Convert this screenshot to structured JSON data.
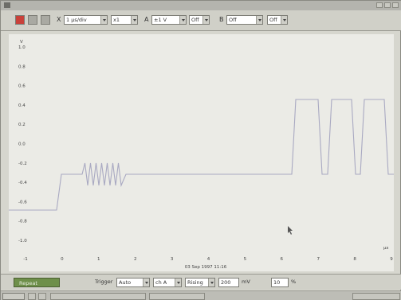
{
  "toolbar": {
    "x_label": "X",
    "timebase": "1 µs/div",
    "timebase_mult": "x1",
    "a_label": "A",
    "a_range": "±1 V",
    "a_coupling": "Off",
    "b_label": "B",
    "b_range": "Off",
    "b_coupling": "Off"
  },
  "plot": {
    "y_unit": "V",
    "x_unit": "µs",
    "y_ticks": [
      "1.0",
      "0.8",
      "0.6",
      "0.4",
      "0.2",
      "0.0",
      "-0.2",
      "-0.4",
      "-0.6",
      "-0.8",
      "-1.0"
    ],
    "x_ticks": [
      "-1",
      "0",
      "1",
      "2",
      "3",
      "4",
      "5",
      "6",
      "7",
      "8",
      "9"
    ],
    "timestamp": "03 Sep 1997 11:16",
    "trace_color": "#a9a9c2"
  },
  "bottom": {
    "repeat_label": "Repeat",
    "trigger_label": "Trigger",
    "trigger_mode": "Auto",
    "trigger_channel": "ch A",
    "trigger_edge": "Rising",
    "trigger_level": "200",
    "trigger_level_unit": "mV",
    "pretrigger": "10",
    "pretrigger_unit": "%"
  }
}
